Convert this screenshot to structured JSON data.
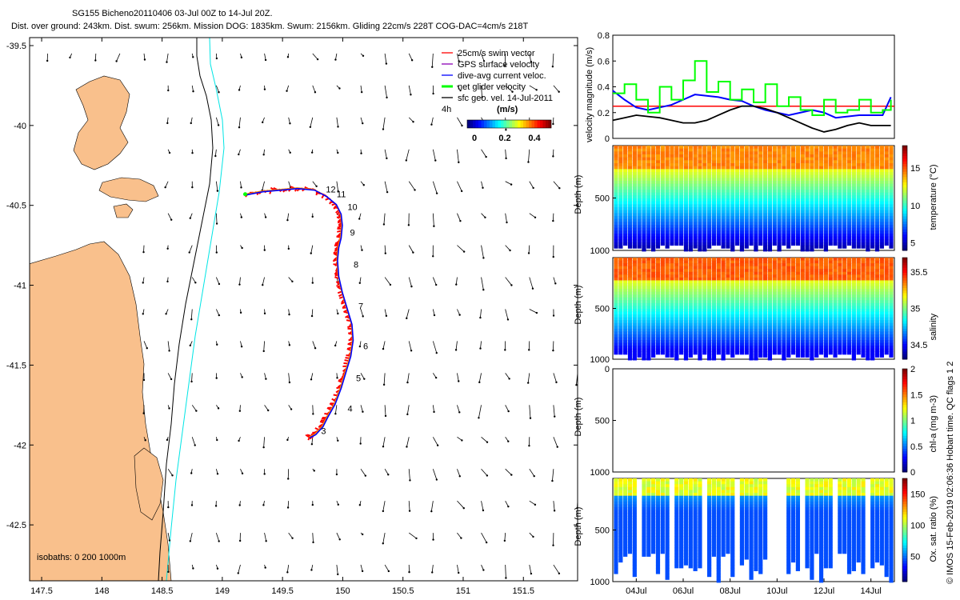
{
  "header": {
    "title": "SG155 Bicheno20110406 03-Jul 00Z to 14-Jul 20Z.",
    "subtitle": "Dist. over ground: 243km. Dist. swum: 256km. Mission DOG: 1835km. Swum: 2156km. Gliding 22cm/s 228T COG-DAC=4cm/s 218T"
  },
  "side_note": "© IMOS 15-Feb-2019 02:06:36 Hobart time. QC flags 1 2",
  "colors": {
    "land": "#f9c08c",
    "isobath0": "#000000",
    "isobath1000": "#00e5e5",
    "track": "#ff0000",
    "dac": "#0000ff",
    "net": "#00ff00",
    "threshold": "#ff0000"
  },
  "chart_data": [
    {
      "type": "scatter",
      "name": "map",
      "xlim": [
        147.4,
        151.95
      ],
      "ylim": [
        -42.85,
        -39.45
      ],
      "xticks": [
        "147.5",
        "148",
        "148.5",
        "149",
        "149.5",
        "150",
        "150.5",
        "151",
        "151.5"
      ],
      "xtick_values": [
        147.5,
        148,
        148.5,
        149,
        149.5,
        150,
        150.5,
        151,
        151.5
      ],
      "yticks": [
        "-39.5",
        "-40",
        "-40.5",
        "-41",
        "-41.5",
        "-42",
        "-42.5"
      ],
      "ytick_values": [
        -39.5,
        -40,
        -40.5,
        -41,
        -41.5,
        -42,
        -42.5
      ],
      "legend": {
        "entries": [
          "25cm/s swim vector",
          "GPS surface velocity",
          "dive-avg current veloc.",
          "net glider velocity",
          "sfc geo. vel. 14-Jul-2011"
        ],
        "entry_colors": [
          "#ff0000",
          "#8b00b5",
          "#0000ff",
          "#00ff00",
          "#000000"
        ],
        "scale_label": "4h",
        "colorbar_unit": "(m/s)",
        "colorbar_ticks": [
          "0",
          "0.2",
          "0.4"
        ],
        "placement": "top-right"
      },
      "isobath_label": "isobaths: 0  200  1000m",
      "track": {
        "lon": [
          149.72,
          149.77,
          149.83,
          149.87,
          149.93,
          149.98,
          150.02,
          150.06,
          150.08,
          150.07,
          150.03,
          149.99,
          149.96,
          149.95,
          149.96,
          149.98,
          149.99,
          149.98,
          149.94,
          149.86,
          149.76,
          149.62,
          149.48,
          149.33,
          149.19
        ],
        "lat": [
          -41.95,
          -41.93,
          -41.88,
          -41.82,
          -41.74,
          -41.64,
          -41.54,
          -41.44,
          -41.34,
          -41.24,
          -41.14,
          -41.04,
          -40.94,
          -40.84,
          -40.76,
          -40.7,
          -40.62,
          -40.55,
          -40.49,
          -40.44,
          -40.4,
          -40.39,
          -40.4,
          -40.41,
          -40.43
        ]
      },
      "day_labels": [
        "3",
        "4",
        "5",
        "6",
        "7",
        "8",
        "9",
        "10",
        "11",
        "12"
      ],
      "day_label_lon": [
        149.82,
        150.04,
        150.11,
        150.17,
        150.13,
        150.09,
        150.06,
        150.04,
        149.95,
        149.86
      ],
      "day_label_lat": [
        -41.93,
        -41.79,
        -41.6,
        -41.4,
        -41.15,
        -40.89,
        -40.69,
        -40.53,
        -40.45,
        -40.42
      ]
    },
    {
      "type": "line",
      "name": "velocity",
      "ylabel": "velocity magnitude (m/s)",
      "ylim": [
        0,
        0.8
      ],
      "yticks": [
        "0",
        "0.2",
        "0.4",
        "0.6",
        "0.8"
      ],
      "ytick_values": [
        0,
        0.2,
        0.4,
        0.6,
        0.8
      ],
      "x_days": [
        3,
        3.5,
        4,
        4.5,
        5,
        5.5,
        6,
        6.5,
        7,
        7.5,
        8,
        8.5,
        9,
        9.5,
        10,
        10.5,
        11,
        11.5,
        12,
        12.5,
        13,
        13.5,
        14,
        14.5,
        14.85
      ],
      "threshold": 0.25,
      "series": [
        {
          "color": "#0000ff",
          "values": [
            0.37,
            0.3,
            0.24,
            0.22,
            0.24,
            0.26,
            0.3,
            0.34,
            0.33,
            0.32,
            0.3,
            0.29,
            0.25,
            0.22,
            0.2,
            0.18,
            0.2,
            0.22,
            0.2,
            0.16,
            0.17,
            0.18,
            0.18,
            0.18,
            0.32
          ]
        },
        {
          "color": "#00ff00",
          "values": [
            0.35,
            0.42,
            0.3,
            0.2,
            0.4,
            0.3,
            0.45,
            0.6,
            0.36,
            0.44,
            0.3,
            0.38,
            0.28,
            0.42,
            0.25,
            0.32,
            0.22,
            0.18,
            0.3,
            0.2,
            0.22,
            0.3,
            0.2,
            0.22,
            0.3
          ]
        },
        {
          "color": "#000000",
          "values": [
            0.14,
            0.16,
            0.18,
            0.17,
            0.16,
            0.14,
            0.12,
            0.12,
            0.14,
            0.18,
            0.22,
            0.25,
            0.25,
            0.23,
            0.2,
            0.16,
            0.12,
            0.08,
            0.05,
            0.07,
            0.1,
            0.12,
            0.1,
            0.1,
            0.1
          ]
        }
      ]
    },
    {
      "type": "heatmap",
      "name": "temperature",
      "ylabel": "Depth (m)",
      "ylim": [
        1000,
        0
      ],
      "yticks": [
        "500",
        "1000"
      ],
      "ytick_values": [
        500,
        1000
      ],
      "colorbar_label": "temperature (°C)",
      "colorbar_ticks": [
        "5",
        "10",
        "15"
      ],
      "colorbar_values": [
        5,
        10,
        15
      ],
      "crange": [
        4,
        18
      ]
    },
    {
      "type": "heatmap",
      "name": "salinity",
      "ylabel": "Depth (m)",
      "ylim": [
        1000,
        0
      ],
      "yticks": [
        "500",
        "1000"
      ],
      "ytick_values": [
        500,
        1000
      ],
      "colorbar_label": "salinity",
      "colorbar_ticks": [
        "34.5",
        "35",
        "35.5"
      ],
      "colorbar_values": [
        34.5,
        35,
        35.5
      ],
      "crange": [
        34.3,
        35.7
      ]
    },
    {
      "type": "heatmap",
      "name": "chla",
      "ylabel": "Depth (m)",
      "ylim": [
        1000,
        0
      ],
      "yticks": [
        "0",
        "500",
        "1000"
      ],
      "ytick_values": [
        0,
        500,
        1000
      ],
      "colorbar_label": "chl-a (mg m-3)",
      "colorbar_ticks": [
        "0",
        "0.5",
        "1",
        "1.5",
        "2"
      ],
      "colorbar_values": [
        0,
        0.5,
        1,
        1.5,
        2
      ],
      "crange": [
        0,
        2
      ]
    },
    {
      "type": "heatmap",
      "name": "oxygen",
      "ylabel": "Depth (m)",
      "ylim": [
        1000,
        0
      ],
      "yticks": [
        "500",
        "1000"
      ],
      "ytick_values": [
        500,
        1000
      ],
      "colorbar_label": "Ox. sat. ratio (%)",
      "colorbar_ticks": [
        "50",
        "100",
        "150"
      ],
      "colorbar_values": [
        50,
        100,
        150
      ],
      "crange": [
        10,
        175
      ],
      "xticks": [
        "04Jul",
        "06Jul",
        "08Jul",
        "10Jul",
        "12Jul",
        "14Jul"
      ],
      "xtick_days": [
        4,
        6,
        8,
        10,
        12,
        14
      ],
      "xlim_days": [
        3,
        15
      ]
    }
  ]
}
